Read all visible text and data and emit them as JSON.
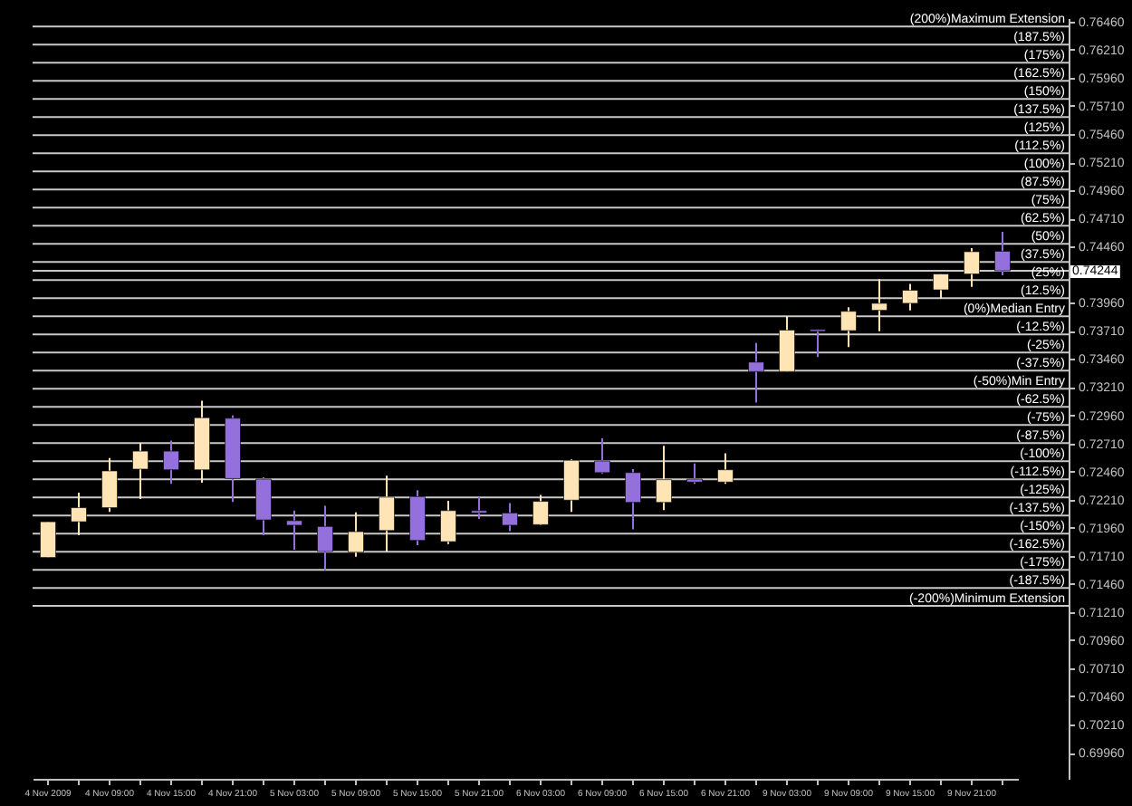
{
  "chart_data": {
    "type": "candlestick",
    "categories": [
      "4 Nov 2009",
      null,
      "4 Nov 09:00",
      null,
      "4 Nov 15:00",
      null,
      "4 Nov 21:00",
      null,
      "5 Nov 03:00",
      null,
      "5 Nov 09:00",
      null,
      "5 Nov 15:00",
      null,
      "5 Nov 21:00",
      null,
      "6 Nov 03:00",
      null,
      "6 Nov 09:00",
      null,
      "6 Nov 15:00",
      null,
      "6 Nov 21:00",
      null,
      "9 Nov 03:00",
      null,
      "9 Nov 09:00",
      null,
      "9 Nov 15:00",
      null,
      "9 Nov 21:00",
      null
    ],
    "ohlc": [
      [
        0.71695,
        0.72013,
        0.71695,
        0.72013
      ],
      [
        0.72013,
        0.72272,
        0.71893,
        0.72138
      ],
      [
        0.72138,
        0.72579,
        0.72101,
        0.72465
      ],
      [
        0.72481,
        0.72715,
        0.72216,
        0.72641
      ],
      [
        0.72641,
        0.72735,
        0.7235,
        0.72475
      ],
      [
        0.72475,
        0.73089,
        0.72361,
        0.72938
      ],
      [
        0.72933,
        0.72958,
        0.7219,
        0.72397
      ],
      [
        0.72392,
        0.72408,
        0.71893,
        0.72029
      ],
      [
        0.72023,
        0.72112,
        0.71764,
        0.71982
      ],
      [
        0.71971,
        0.72154,
        0.71582,
        0.71748
      ],
      [
        0.71742,
        0.72096,
        0.71702,
        0.71925
      ],
      [
        0.71935,
        0.72423,
        0.71748,
        0.72232
      ],
      [
        0.72236,
        0.72294,
        0.71805,
        0.71847
      ],
      [
        0.71836,
        0.722,
        0.71815,
        0.72112
      ],
      [
        0.72112,
        0.72232,
        0.72038,
        0.72091
      ],
      [
        0.72091,
        0.72179,
        0.71929,
        0.71982
      ],
      [
        0.71987,
        0.72252,
        0.71982,
        0.72194
      ],
      [
        0.72205,
        0.72568,
        0.72101,
        0.72559
      ],
      [
        0.72553,
        0.72755,
        0.72439,
        0.7245
      ],
      [
        0.7245,
        0.72481,
        0.71945,
        0.72185
      ],
      [
        0.72185,
        0.72688,
        0.72116,
        0.72387
      ],
      [
        0.72392,
        0.72532,
        0.7235,
        0.72366
      ],
      [
        0.72366,
        0.72621,
        0.7235,
        0.72475
      ],
      [
        0.73432,
        0.73603,
        0.73073,
        0.73348
      ],
      [
        0.73348,
        0.73842,
        0.73348,
        0.73717
      ],
      [
        0.73722,
        0.73722,
        0.73478,
        0.73706
      ],
      [
        0.73712,
        0.7392,
        0.73566,
        0.73884
      ],
      [
        0.73893,
        0.74169,
        0.73706,
        0.73955
      ],
      [
        0.73955,
        0.74127,
        0.73893,
        0.74071
      ],
      [
        0.74075,
        0.74216,
        0.73997,
        0.74216
      ],
      [
        0.74216,
        0.74445,
        0.74102,
        0.74414
      ],
      [
        0.74418,
        0.7459,
        0.74205,
        0.74244
      ]
    ],
    "colors": [
      "#ffe4b5",
      "#ffe4b5",
      "#ffe4b5",
      "#ffe4b5",
      "#9370db",
      "#ffe4b5",
      "#9370db",
      "#9370db",
      "#9370db",
      "#9370db",
      "#ffe4b5",
      "#ffe4b5",
      "#9370db",
      "#ffe4b5",
      "#9370db",
      "#9370db",
      "#ffe4b5",
      "#ffe4b5",
      "#9370db",
      "#9370db",
      "#ffe4b5",
      "#9370db",
      "#ffe4b5",
      "#9370db",
      "#ffe4b5",
      "#9370db",
      "#ffe4b5",
      "#ffe4b5",
      "#ffe4b5",
      "#ffe4b5",
      "#ffe4b5",
      "#9370db"
    ],
    "ylim": [
      0.69727,
      0.76491
    ],
    "yticks": [
      {
        "value": 0.6996,
        "label": "0.69960"
      },
      {
        "value": 0.7021,
        "label": "0.70210"
      },
      {
        "value": 0.7046,
        "label": "0.70460"
      },
      {
        "value": 0.7071,
        "label": "0.70710"
      },
      {
        "value": 0.7096,
        "label": "0.70960"
      },
      {
        "value": 0.7121,
        "label": "0.71210"
      },
      {
        "value": 0.7146,
        "label": "0.71460"
      },
      {
        "value": 0.7171,
        "label": "0.71710"
      },
      {
        "value": 0.7196,
        "label": "0.71960"
      },
      {
        "value": 0.7221,
        "label": "0.72210"
      },
      {
        "value": 0.7246,
        "label": "0.72460"
      },
      {
        "value": 0.7271,
        "label": "0.72710"
      },
      {
        "value": 0.7296,
        "label": "0.72960"
      },
      {
        "value": 0.7321,
        "label": "0.73210"
      },
      {
        "value": 0.7346,
        "label": "0.73460"
      },
      {
        "value": 0.7371,
        "label": "0.73710"
      },
      {
        "value": 0.7396,
        "label": "0.73960"
      },
      {
        "value": 0.7446,
        "label": "0.74460"
      },
      {
        "value": 0.7471,
        "label": "0.74710"
      },
      {
        "value": 0.7496,
        "label": "0.74960"
      },
      {
        "value": 0.7521,
        "label": "0.75210"
      },
      {
        "value": 0.7546,
        "label": "0.75460"
      },
      {
        "value": 0.7571,
        "label": "0.75710"
      },
      {
        "value": 0.7596,
        "label": "0.75960"
      },
      {
        "value": 0.7621,
        "label": "0.76210"
      },
      {
        "value": 0.7646,
        "label": "0.76460"
      }
    ],
    "ref_lines": [
      {
        "axis": "y",
        "value": 0.76416
      },
      {
        "axis": "y",
        "value": 0.76255
      },
      {
        "axis": "y",
        "value": 0.76094
      },
      {
        "axis": "y",
        "value": 0.75933
      },
      {
        "axis": "y",
        "value": 0.75772
      },
      {
        "axis": "y",
        "value": 0.75611
      },
      {
        "axis": "y",
        "value": 0.7545
      },
      {
        "axis": "y",
        "value": 0.75289
      },
      {
        "axis": "y",
        "value": 0.75128
      },
      {
        "axis": "y",
        "value": 0.74967
      },
      {
        "axis": "y",
        "value": 0.74806
      },
      {
        "axis": "y",
        "value": 0.74645
      },
      {
        "axis": "y",
        "value": 0.74484
      },
      {
        "axis": "y",
        "value": 0.74323
      },
      {
        "axis": "y",
        "value": 0.74162
      },
      {
        "axis": "y",
        "value": 0.74001
      },
      {
        "axis": "y",
        "value": 0.7384
      },
      {
        "axis": "y",
        "value": 0.73679
      },
      {
        "axis": "y",
        "value": 0.73518
      },
      {
        "axis": "y",
        "value": 0.73357
      },
      {
        "axis": "y",
        "value": 0.73196
      },
      {
        "axis": "y",
        "value": 0.73035
      },
      {
        "axis": "y",
        "value": 0.72874
      },
      {
        "axis": "y",
        "value": 0.72713
      },
      {
        "axis": "y",
        "value": 0.72552
      },
      {
        "axis": "y",
        "value": 0.72391
      },
      {
        "axis": "y",
        "value": 0.7223
      },
      {
        "axis": "y",
        "value": 0.72069
      },
      {
        "axis": "y",
        "value": 0.71908
      },
      {
        "axis": "y",
        "value": 0.71747
      },
      {
        "axis": "y",
        "value": 0.71586
      },
      {
        "axis": "y",
        "value": 0.71425
      },
      {
        "axis": "y",
        "value": 0.71264
      },
      {
        "axis": "y",
        "value": 0.74244,
        "label": "0.74244"
      }
    ],
    "annotations": [
      {
        "text": "(200%)Maximum Extension",
        "y": 0.76416
      },
      {
        "text": "(187.5%)",
        "y": 0.76255
      },
      {
        "text": "(175%)",
        "y": 0.76094
      },
      {
        "text": "(162.5%)",
        "y": 0.75933
      },
      {
        "text": "(150%)",
        "y": 0.75772
      },
      {
        "text": "(137.5%)",
        "y": 0.75611
      },
      {
        "text": "(125%)",
        "y": 0.7545
      },
      {
        "text": "(112.5%)",
        "y": 0.75289
      },
      {
        "text": "(100%)",
        "y": 0.75128
      },
      {
        "text": "(87.5%)",
        "y": 0.74967
      },
      {
        "text": "(75%)",
        "y": 0.74806
      },
      {
        "text": "(62.5%)",
        "y": 0.74645
      },
      {
        "text": "(50%)",
        "y": 0.74484
      },
      {
        "text": "(37.5%)",
        "y": 0.74323
      },
      {
        "text": "(25%)",
        "y": 0.74162
      },
      {
        "text": "(12.5%)",
        "y": 0.74001
      },
      {
        "text": "(0%)Median Entry",
        "y": 0.7384
      },
      {
        "text": "(-12.5%)",
        "y": 0.73679
      },
      {
        "text": "(-25%)",
        "y": 0.73518
      },
      {
        "text": "(-37.5%)",
        "y": 0.73357
      },
      {
        "text": "(-50%)Min Entry",
        "y": 0.73196
      },
      {
        "text": "(-62.5%)",
        "y": 0.73035
      },
      {
        "text": "(-75%)",
        "y": 0.72874
      },
      {
        "text": "(-87.5%)",
        "y": 0.72713
      },
      {
        "text": "(-100%)",
        "y": 0.72552
      },
      {
        "text": "(-112.5%)",
        "y": 0.72391
      },
      {
        "text": "(-125%)",
        "y": 0.7223
      },
      {
        "text": "(-137.5%)",
        "y": 0.72069
      },
      {
        "text": "(-150%)",
        "y": 0.71908
      },
      {
        "text": "(-162.5%)",
        "y": 0.71747
      },
      {
        "text": "(-175%)",
        "y": 0.71586
      },
      {
        "text": "(-187.5%)",
        "y": 0.71425
      },
      {
        "text": "(-200%)Minimum Extension",
        "y": 0.71264
      }
    ]
  }
}
